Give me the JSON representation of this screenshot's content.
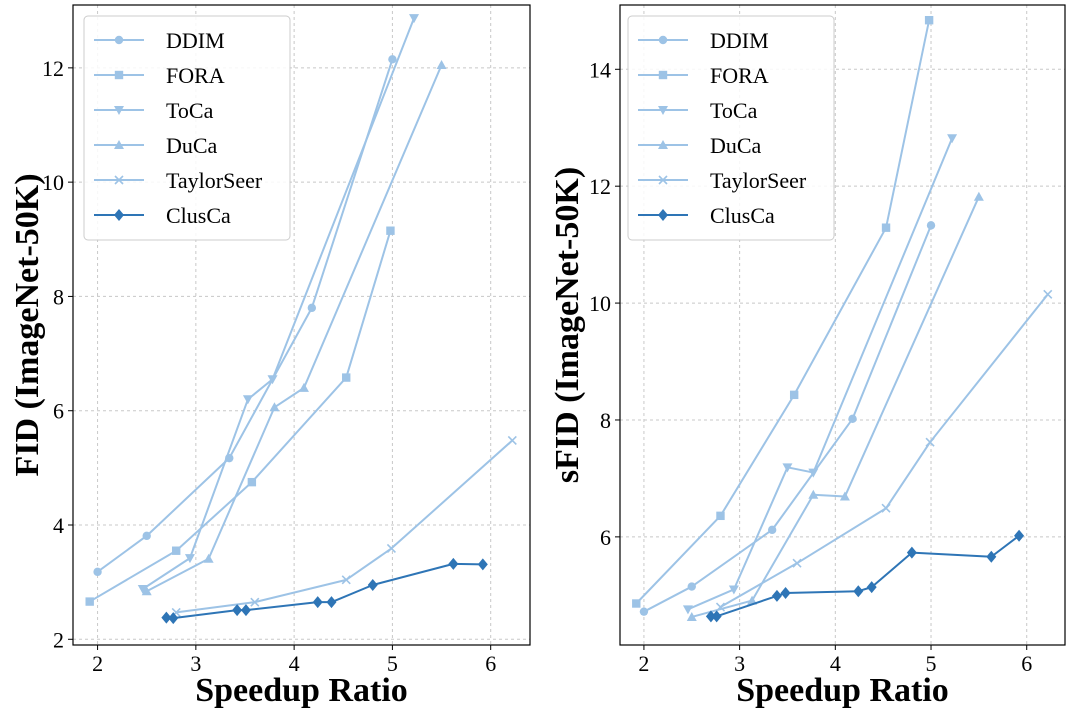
{
  "colors": {
    "light": "#9dc3e6",
    "dark": "#2e75b6"
  },
  "chart_data": [
    {
      "type": "line",
      "xlabel": "Speedup Ratio",
      "ylabel": "FID (ImageNet-50K)",
      "xlim": [
        1.75,
        6.4
      ],
      "ylim": [
        1.9,
        13.1
      ],
      "xticks": [
        2,
        3,
        4,
        5,
        6
      ],
      "yticks": [
        2,
        4,
        6,
        8,
        10,
        12
      ],
      "grid": true,
      "legend_position": "top-left",
      "series": [
        {
          "name": "DDIM",
          "marker": "circle",
          "color": "#9dc3e6",
          "x": [
            2.0,
            2.5,
            3.34,
            4.18,
            5.0
          ],
          "y": [
            3.18,
            3.81,
            5.17,
            7.8,
            12.15
          ]
        },
        {
          "name": "FORA",
          "marker": "square",
          "color": "#9dc3e6",
          "x": [
            1.92,
            2.8,
            3.57,
            4.53,
            4.98
          ],
          "y": [
            2.66,
            3.55,
            4.75,
            6.58,
            9.15
          ]
        },
        {
          "name": "ToCa",
          "marker": "triangle-down",
          "color": "#9dc3e6",
          "x": [
            2.46,
            2.94,
            3.53,
            3.78,
            5.22
          ],
          "y": [
            2.88,
            3.42,
            6.2,
            6.55,
            12.87
          ]
        },
        {
          "name": "DuCa",
          "marker": "triangle-up",
          "color": "#9dc3e6",
          "x": [
            2.5,
            3.13,
            3.8,
            4.1,
            5.5
          ],
          "y": [
            2.84,
            3.41,
            6.06,
            6.4,
            12.05
          ]
        },
        {
          "name": "TaylorSeer",
          "marker": "x",
          "color": "#9dc3e6",
          "x": [
            2.8,
            3.6,
            4.53,
            4.99,
            6.22
          ],
          "y": [
            2.47,
            2.65,
            3.04,
            3.59,
            5.48
          ]
        },
        {
          "name": "ClusCa",
          "marker": "diamond",
          "color": "#2e75b6",
          "x": [
            2.7,
            2.77,
            3.42,
            3.51,
            4.24,
            4.38,
            4.8,
            5.62,
            5.92
          ],
          "y": [
            2.38,
            2.37,
            2.51,
            2.51,
            2.65,
            2.65,
            2.95,
            3.32,
            3.31
          ]
        }
      ]
    },
    {
      "type": "line",
      "xlabel": "Speedup Ratio",
      "ylabel": "sFID (ImageNet-50K)",
      "xlim": [
        1.75,
        6.4
      ],
      "ylim": [
        4.15,
        15.1
      ],
      "xticks": [
        2,
        3,
        4,
        5,
        6
      ],
      "yticks": [
        6,
        8,
        10,
        12,
        14
      ],
      "grid": true,
      "legend_position": "top-left",
      "series": [
        {
          "name": "DDIM",
          "marker": "circle",
          "color": "#9dc3e6",
          "x": [
            2.0,
            2.5,
            3.34,
            4.18,
            5.0
          ],
          "y": [
            4.72,
            5.15,
            6.12,
            8.02,
            11.33
          ]
        },
        {
          "name": "FORA",
          "marker": "square",
          "color": "#9dc3e6",
          "x": [
            1.92,
            2.8,
            3.57,
            4.53,
            4.98
          ],
          "y": [
            4.86,
            6.36,
            8.43,
            11.29,
            14.84
          ]
        },
        {
          "name": "ToCa",
          "marker": "triangle-down",
          "color": "#9dc3e6",
          "x": [
            2.46,
            2.94,
            3.5,
            3.77,
            5.22
          ],
          "y": [
            4.76,
            5.1,
            7.19,
            7.1,
            12.82
          ]
        },
        {
          "name": "DuCa",
          "marker": "triangle-up",
          "color": "#9dc3e6",
          "x": [
            2.5,
            3.13,
            3.77,
            4.1,
            5.5
          ],
          "y": [
            4.63,
            4.91,
            6.72,
            6.69,
            11.82
          ]
        },
        {
          "name": "TaylorSeer",
          "marker": "x",
          "color": "#9dc3e6",
          "x": [
            2.8,
            3.6,
            4.53,
            4.99,
            6.22
          ],
          "y": [
            4.8,
            5.55,
            6.49,
            7.62,
            10.15
          ]
        },
        {
          "name": "ClusCa",
          "marker": "diamond",
          "color": "#2e75b6",
          "x": [
            2.7,
            2.76,
            3.39,
            3.48,
            4.24,
            4.38,
            4.8,
            5.63,
            5.92
          ],
          "y": [
            4.64,
            4.64,
            4.99,
            5.04,
            5.07,
            5.14,
            5.73,
            5.66,
            6.02
          ]
        }
      ]
    }
  ]
}
